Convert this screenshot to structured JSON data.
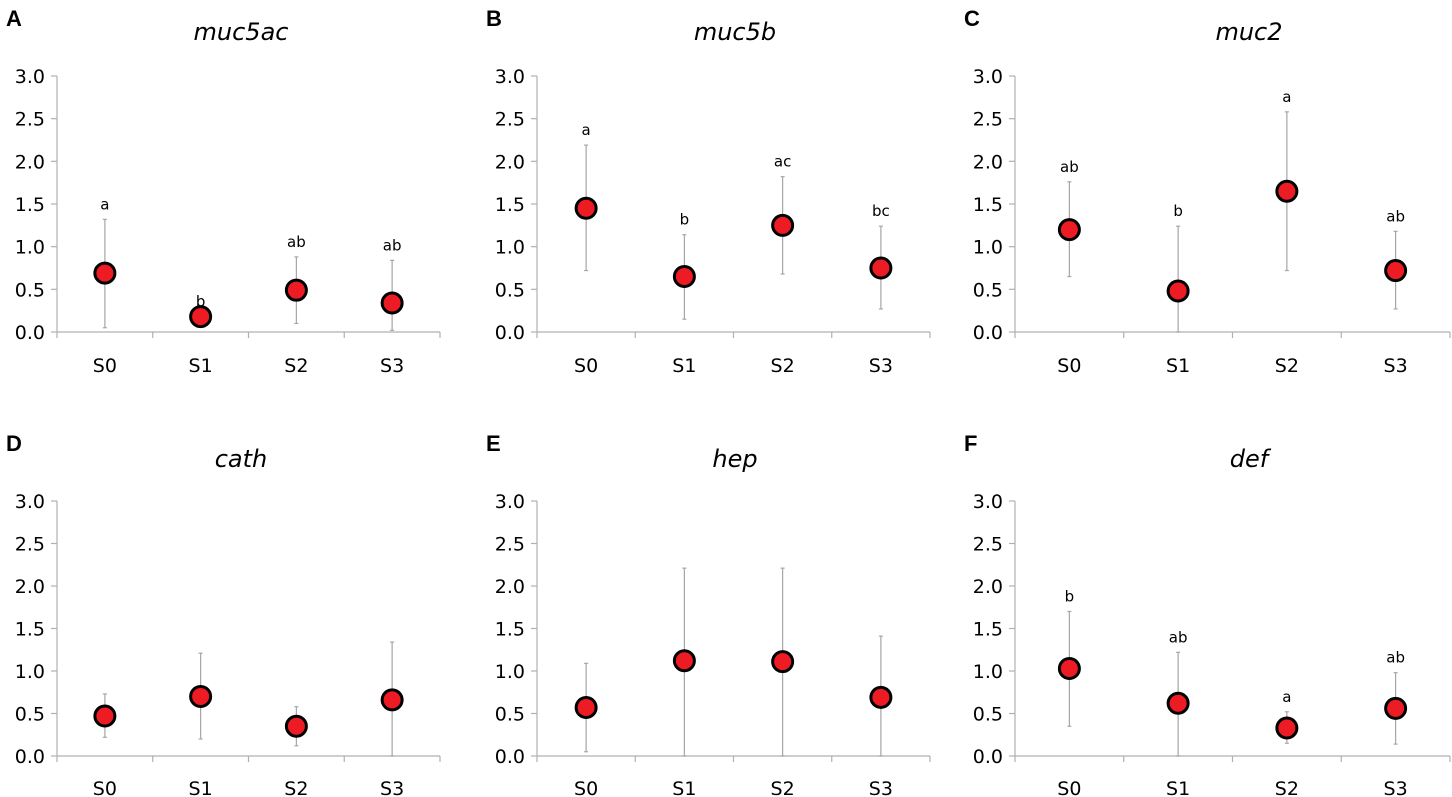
{
  "chart_data": [
    {
      "panel": "A",
      "title": "muc5ac",
      "type": "scatter",
      "categories": [
        "S0",
        "S1",
        "S2",
        "S3"
      ],
      "ylim": [
        0,
        3.0
      ],
      "yticks": [
        "0.0",
        "0.5",
        "1.0",
        "1.5",
        "2.0",
        "2.5",
        "3.0"
      ],
      "series": [
        {
          "name": "muc5ac",
          "values": [
            0.69,
            0.18,
            0.49,
            0.34
          ],
          "err_low": [
            0.05,
            0.18,
            0.1,
            0.02
          ],
          "err_high": [
            1.32,
            0.18,
            0.88,
            0.84
          ],
          "labels": [
            "a",
            "b",
            "ab",
            "ab"
          ]
        }
      ]
    },
    {
      "panel": "B",
      "title": "muc5b",
      "type": "scatter",
      "categories": [
        "S0",
        "S1",
        "S2",
        "S3"
      ],
      "ylim": [
        0,
        3.0
      ],
      "yticks": [
        "0.0",
        "0.5",
        "1.0",
        "1.5",
        "2.0",
        "2.5",
        "3.0"
      ],
      "series": [
        {
          "name": "muc5b",
          "values": [
            1.45,
            0.65,
            1.25,
            0.75
          ],
          "err_low": [
            0.72,
            0.15,
            0.68,
            0.27
          ],
          "err_high": [
            2.19,
            1.14,
            1.82,
            1.24
          ],
          "labels": [
            "a",
            "b",
            "ac",
            "bc"
          ]
        }
      ]
    },
    {
      "panel": "C",
      "title": "muc2",
      "type": "scatter",
      "categories": [
        "S0",
        "S1",
        "S2",
        "S3"
      ],
      "ylim": [
        0,
        3.0
      ],
      "yticks": [
        "0.0",
        "0.5",
        "1.0",
        "1.5",
        "2.0",
        "2.5",
        "3.0"
      ],
      "series": [
        {
          "name": "muc2",
          "values": [
            1.2,
            0.48,
            1.65,
            0.72
          ],
          "err_low": [
            0.65,
            0.0,
            0.72,
            0.27
          ],
          "err_high": [
            1.76,
            1.24,
            2.58,
            1.18
          ],
          "labels": [
            "ab",
            "b",
            "a",
            "ab"
          ]
        }
      ]
    },
    {
      "panel": "D",
      "title": "cath",
      "type": "scatter",
      "categories": [
        "S0",
        "S1",
        "S2",
        "S3"
      ],
      "ylim": [
        0,
        3.0
      ],
      "yticks": [
        "0.0",
        "0.5",
        "1.0",
        "1.5",
        "2.0",
        "2.5",
        "3.0"
      ],
      "series": [
        {
          "name": "cath",
          "values": [
            0.47,
            0.7,
            0.35,
            0.66
          ],
          "err_low": [
            0.22,
            0.2,
            0.12,
            0.0
          ],
          "err_high": [
            0.73,
            1.21,
            0.58,
            1.34
          ],
          "labels": [
            "",
            "",
            "",
            ""
          ]
        }
      ]
    },
    {
      "panel": "E",
      "title": "hep",
      "type": "scatter",
      "categories": [
        "S0",
        "S1",
        "S2",
        "S3"
      ],
      "ylim": [
        0,
        3.0
      ],
      "yticks": [
        "0.0",
        "0.5",
        "1.0",
        "1.5",
        "2.0",
        "2.5",
        "3.0"
      ],
      "series": [
        {
          "name": "hep",
          "values": [
            0.57,
            1.12,
            1.11,
            0.69
          ],
          "err_low": [
            0.05,
            0.0,
            0.0,
            0.0
          ],
          "err_high": [
            1.09,
            2.21,
            2.21,
            1.41
          ],
          "labels": [
            "",
            "",
            "",
            ""
          ]
        }
      ]
    },
    {
      "panel": "F",
      "title": "def",
      "type": "scatter",
      "categories": [
        "S0",
        "S1",
        "S2",
        "S3"
      ],
      "ylim": [
        0,
        3.0
      ],
      "yticks": [
        "0.0",
        "0.5",
        "1.0",
        "1.5",
        "2.0",
        "2.5",
        "3.0"
      ],
      "series": [
        {
          "name": "def",
          "values": [
            1.03,
            0.62,
            0.33,
            0.56
          ],
          "err_low": [
            0.35,
            0.0,
            0.15,
            0.14
          ],
          "err_high": [
            1.7,
            1.22,
            0.52,
            0.98
          ],
          "labels": [
            "b",
            "ab",
            "a",
            "ab"
          ]
        }
      ]
    }
  ],
  "style": {
    "marker_fill": "#ed1c24",
    "marker_edge": "#000000",
    "errorbar_color": "#a6a6a6",
    "axis_color": "#b0b0b0"
  }
}
